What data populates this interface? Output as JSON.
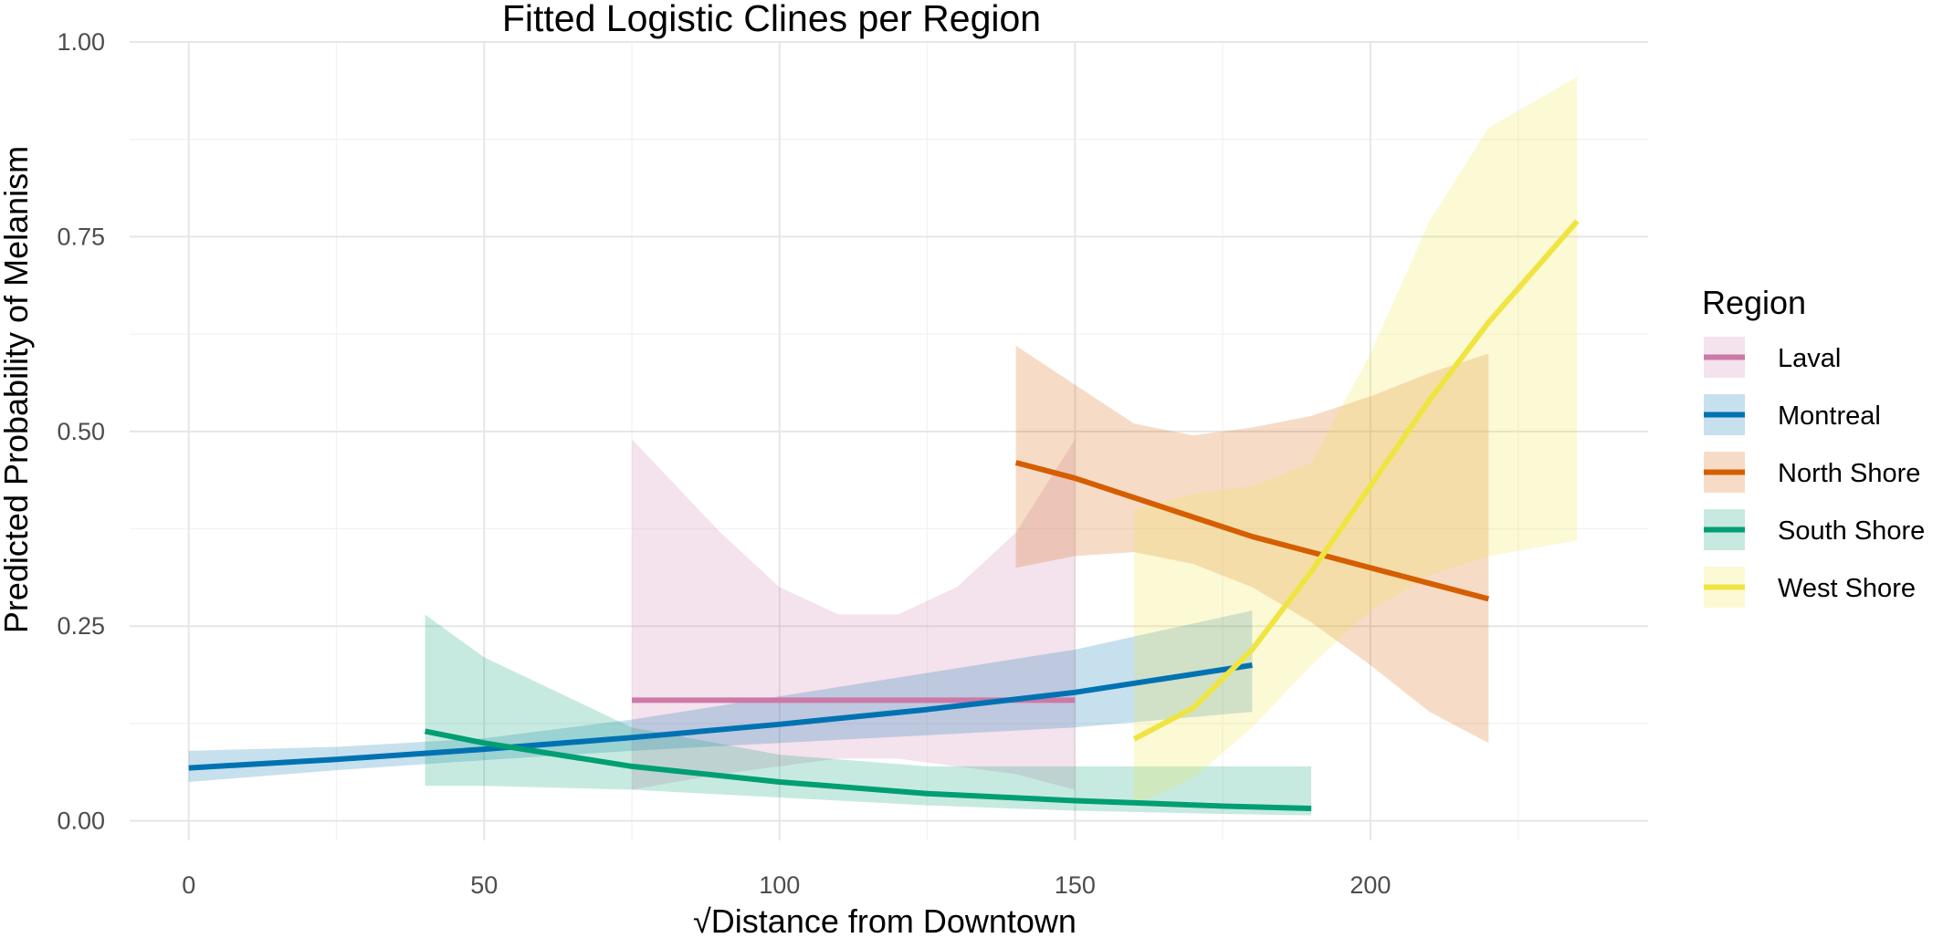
{
  "chart_data": {
    "type": "line",
    "title": "Fitted Logistic Clines per Region",
    "xlabel": "√Distance from Downtown",
    "ylabel": "Predicted Probability of Melanism",
    "xlim": [
      -10,
      247
    ],
    "ylim": [
      -0.025,
      1.0
    ],
    "x_ticks": [
      0,
      50,
      100,
      150,
      200
    ],
    "x_tick_labels": [
      "0",
      "50",
      "100",
      "150",
      "200"
    ],
    "x_minor_ticks": [
      25,
      75,
      125,
      175,
      225
    ],
    "y_ticks": [
      0.0,
      0.25,
      0.5,
      0.75,
      1.0
    ],
    "y_tick_labels": [
      "0.00",
      "0.25",
      "0.50",
      "0.75",
      "1.00"
    ],
    "y_minor_ticks": [
      0.125,
      0.375,
      0.625,
      0.875
    ],
    "grid": true,
    "legend": {
      "title": "Region",
      "position": "right"
    },
    "series": [
      {
        "name": "Laval",
        "color": "#CC79A7",
        "x": [
          75,
          90,
          100,
          110,
          120,
          130,
          140,
          150
        ],
        "y": [
          0.155,
          0.155,
          0.155,
          0.155,
          0.155,
          0.155,
          0.155,
          0.155
        ],
        "lower": [
          0.04,
          0.06,
          0.07,
          0.08,
          0.08,
          0.07,
          0.06,
          0.04
        ],
        "upper": [
          0.49,
          0.37,
          0.3,
          0.265,
          0.265,
          0.3,
          0.37,
          0.49
        ]
      },
      {
        "name": "Montreal",
        "color": "#0072B2",
        "x": [
          0,
          25,
          50,
          75,
          100,
          125,
          150,
          180
        ],
        "y": [
          0.068,
          0.079,
          0.092,
          0.107,
          0.124,
          0.143,
          0.165,
          0.2
        ],
        "lower": [
          0.05,
          0.065,
          0.078,
          0.09,
          0.1,
          0.11,
          0.12,
          0.14
        ],
        "upper": [
          0.09,
          0.095,
          0.106,
          0.13,
          0.16,
          0.19,
          0.22,
          0.27
        ]
      },
      {
        "name": "North Shore",
        "color": "#D55E00",
        "x": [
          140,
          150,
          160,
          170,
          180,
          190,
          200,
          210,
          220
        ],
        "y": [
          0.46,
          0.44,
          0.415,
          0.39,
          0.365,
          0.345,
          0.325,
          0.305,
          0.285
        ],
        "lower": [
          0.325,
          0.34,
          0.345,
          0.33,
          0.3,
          0.255,
          0.2,
          0.14,
          0.1
        ],
        "upper": [
          0.61,
          0.56,
          0.51,
          0.495,
          0.505,
          0.52,
          0.545,
          0.575,
          0.6
        ]
      },
      {
        "name": "South Shore",
        "color": "#009E73",
        "x": [
          40,
          50,
          75,
          100,
          125,
          150,
          175,
          190
        ],
        "y": [
          0.115,
          0.1,
          0.07,
          0.05,
          0.035,
          0.026,
          0.019,
          0.016
        ],
        "lower": [
          0.045,
          0.045,
          0.04,
          0.03,
          0.02,
          0.013,
          0.009,
          0.007
        ],
        "upper": [
          0.265,
          0.21,
          0.12,
          0.085,
          0.07,
          0.07,
          0.07,
          0.07
        ]
      },
      {
        "name": "West Shore",
        "color": "#F0E442",
        "x": [
          160,
          170,
          180,
          190,
          200,
          210,
          220,
          235
        ],
        "y": [
          0.105,
          0.145,
          0.22,
          0.32,
          0.43,
          0.54,
          0.64,
          0.77
        ],
        "lower": [
          0.02,
          0.055,
          0.12,
          0.2,
          0.27,
          0.315,
          0.34,
          0.36
        ],
        "upper": [
          0.4,
          0.42,
          0.43,
          0.46,
          0.6,
          0.77,
          0.89,
          0.955
        ]
      }
    ]
  }
}
